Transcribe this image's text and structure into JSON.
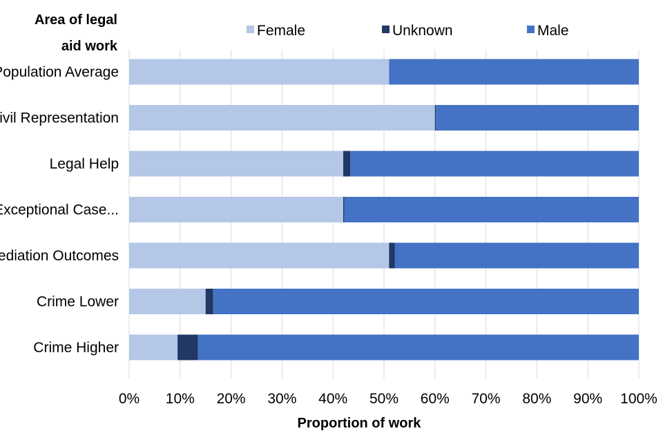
{
  "chart_data": {
    "type": "bar",
    "orientation": "horizontal",
    "stacked": true,
    "y_axis_title": [
      "Area of legal",
      "aid work"
    ],
    "xlabel": "Proportion of work",
    "xlim": [
      0,
      100
    ],
    "x_ticks": [
      "0%",
      "10%",
      "20%",
      "30%",
      "40%",
      "50%",
      "60%",
      "70%",
      "80%",
      "90%",
      "100%"
    ],
    "x_tick_values": [
      0,
      10,
      20,
      30,
      40,
      50,
      60,
      70,
      80,
      90,
      100
    ],
    "grid": true,
    "legend_position": "top",
    "categories": [
      "Population Average",
      "Civil Representation",
      "Legal Help",
      "Exceptional Case...",
      "Mediation Outcomes",
      "Crime Lower",
      "Crime Higher"
    ],
    "series": [
      {
        "name": "Female",
        "color": "#b4c7e7",
        "values": [
          51,
          60,
          42,
          42,
          51,
          15,
          9.5
        ]
      },
      {
        "name": "Unknown",
        "color": "#203864",
        "values": [
          0,
          0.2,
          1.4,
          0.2,
          1.1,
          1.5,
          4
        ]
      },
      {
        "name": "Male",
        "color": "#4472c4",
        "values": [
          49,
          39.8,
          56.6,
          57.8,
          47.9,
          83.5,
          86.5
        ]
      }
    ]
  }
}
